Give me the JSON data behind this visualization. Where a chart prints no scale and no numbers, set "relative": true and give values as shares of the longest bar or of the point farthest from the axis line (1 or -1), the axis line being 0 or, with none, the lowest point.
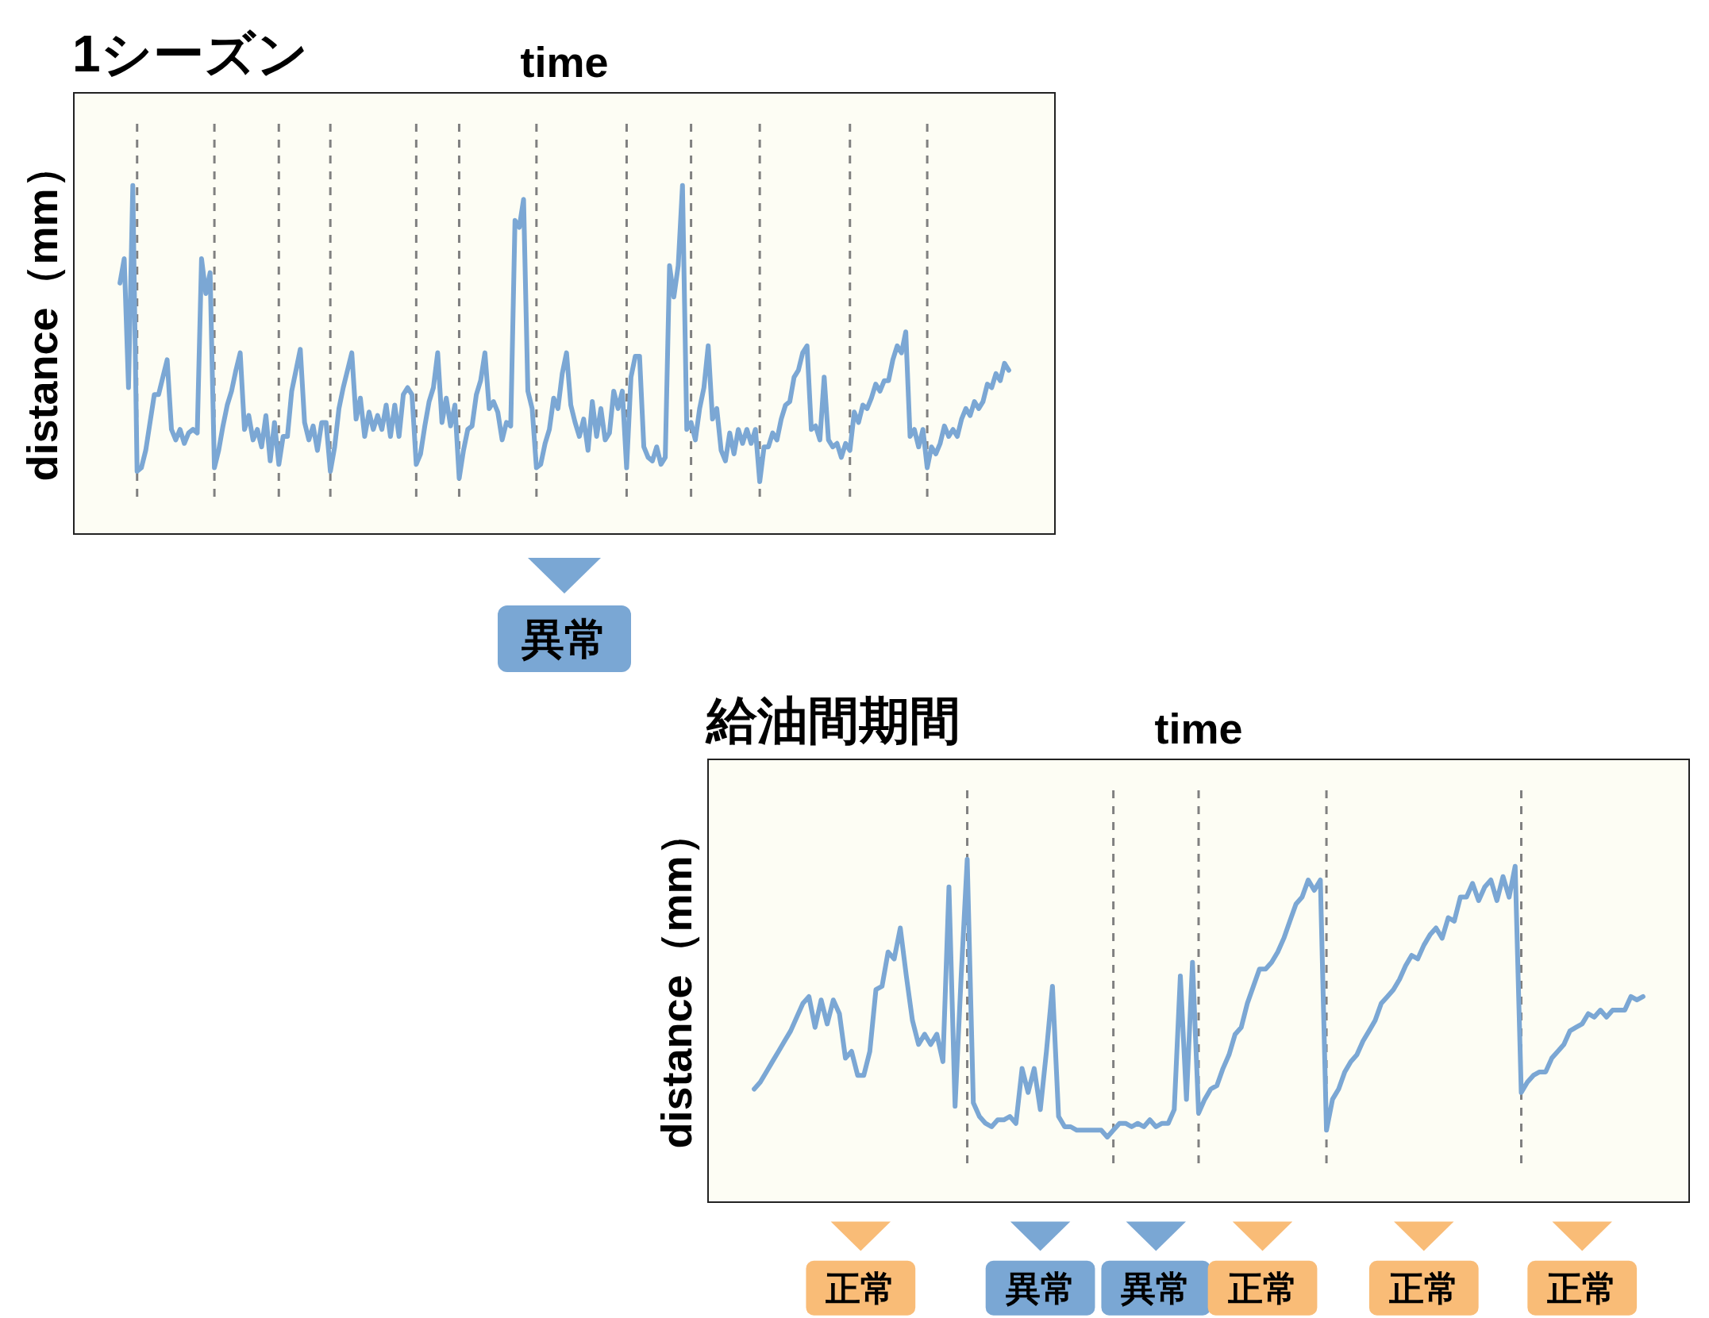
{
  "chart_data": [
    {
      "type": "line",
      "title": "1シーズン",
      "xlabel": "time",
      "ylabel": "distance（mm）",
      "relative": true,
      "categories": [
        null,
        null,
        null,
        null,
        null,
        null,
        null,
        null,
        null,
        null,
        null,
        null,
        null,
        null,
        null,
        null,
        null,
        null,
        null,
        null,
        null,
        null,
        null,
        null,
        null,
        null,
        null,
        null,
        null,
        null,
        null,
        null,
        null,
        null,
        null,
        null,
        null,
        null,
        null,
        null,
        null,
        null,
        null,
        null,
        null,
        null,
        null,
        null,
        null,
        null,
        null,
        null,
        null,
        null,
        null,
        null,
        null,
        null,
        null,
        null,
        null,
        null,
        null,
        null,
        null,
        null,
        null,
        null,
        null,
        null,
        null,
        null,
        null,
        null,
        null,
        null,
        null,
        null,
        null,
        null,
        null,
        null,
        null,
        null,
        null,
        null,
        null,
        null,
        null,
        null,
        null,
        null,
        null,
        null,
        null,
        null,
        null,
        null,
        null,
        null,
        null,
        null,
        null,
        null,
        null,
        null,
        null,
        null,
        null,
        null,
        null,
        null,
        null,
        null,
        null,
        null,
        null,
        null,
        null,
        null,
        null,
        null,
        null,
        null,
        null,
        null,
        null,
        null,
        null,
        null,
        null,
        null,
        null,
        null,
        null,
        null,
        null,
        null,
        null,
        null,
        null,
        null,
        null,
        null,
        null,
        null,
        null,
        null,
        null,
        null,
        null,
        null,
        null,
        null,
        null,
        null,
        null,
        null,
        null,
        null,
        null,
        null,
        null,
        null,
        null,
        null,
        null,
        null,
        null,
        null,
        null,
        null,
        null,
        null,
        null,
        null,
        null,
        null,
        null,
        null,
        null,
        null,
        null,
        null,
        null,
        null,
        null,
        null,
        null,
        null,
        null,
        null,
        null,
        null,
        null,
        null,
        null,
        null,
        null,
        null,
        null,
        null,
        null,
        null,
        null,
        null,
        null,
        null
      ],
      "series": [
        {
          "color": "#7ba7d4",
          "values": [
            0.72,
            0.79,
            0.42,
            1.0,
            0.18,
            0.19,
            0.24,
            0.32,
            0.4,
            0.4,
            0.45,
            0.5,
            0.3,
            0.27,
            0.3,
            0.26,
            0.29,
            0.3,
            0.29,
            0.79,
            0.69,
            0.75,
            0.19,
            0.24,
            0.31,
            0.37,
            0.41,
            0.47,
            0.52,
            0.3,
            0.34,
            0.27,
            0.3,
            0.25,
            0.34,
            0.21,
            0.32,
            0.2,
            0.28,
            0.28,
            0.41,
            0.47,
            0.53,
            0.32,
            0.27,
            0.31,
            0.24,
            0.32,
            0.32,
            0.18,
            0.25,
            0.36,
            0.42,
            0.47,
            0.52,
            0.33,
            0.39,
            0.28,
            0.35,
            0.3,
            0.34,
            0.3,
            0.37,
            0.28,
            0.37,
            0.28,
            0.4,
            0.42,
            0.4,
            0.2,
            0.23,
            0.31,
            0.38,
            0.42,
            0.52,
            0.32,
            0.39,
            0.31,
            0.37,
            0.16,
            0.24,
            0.3,
            0.31,
            0.4,
            0.44,
            0.52,
            0.36,
            0.38,
            0.35,
            0.27,
            0.32,
            0.31,
            0.9,
            0.88,
            0.96,
            0.41,
            0.36,
            0.19,
            0.2,
            0.26,
            0.3,
            0.39,
            0.36,
            0.46,
            0.52,
            0.37,
            0.32,
            0.28,
            0.33,
            0.24,
            0.38,
            0.28,
            0.36,
            0.27,
            0.29,
            0.41,
            0.36,
            0.41,
            0.19,
            0.45,
            0.51,
            0.51,
            0.25,
            0.22,
            0.21,
            0.25,
            0.2,
            0.22,
            0.77,
            0.68,
            0.77,
            1.0,
            0.3,
            0.32,
            0.27,
            0.36,
            0.42,
            0.54,
            0.33,
            0.36,
            0.24,
            0.21,
            0.29,
            0.23,
            0.3,
            0.26,
            0.3,
            0.26,
            0.3,
            0.15,
            0.25,
            0.25,
            0.29,
            0.27,
            0.33,
            0.37,
            0.38,
            0.45,
            0.47,
            0.52,
            0.54,
            0.3,
            0.31,
            0.27,
            0.45,
            0.27,
            0.25,
            0.26,
            0.22,
            0.26,
            0.24,
            0.35,
            0.32,
            0.37,
            0.36,
            0.39,
            0.43,
            0.41,
            0.44,
            0.44,
            0.5,
            0.54,
            0.52,
            0.58,
            0.28,
            0.3,
            0.25,
            0.3,
            0.19,
            0.25,
            0.23,
            0.26,
            0.31,
            0.28,
            0.3,
            0.28,
            0.33,
            0.36,
            0.34,
            0.38,
            0.36,
            0.38,
            0.43,
            0.42,
            0.46,
            0.44,
            0.49,
            0.47
          ]
        }
      ],
      "annotations": [
        "異常"
      ]
    },
    {
      "type": "line",
      "title": "給油間期間",
      "xlabel": "time",
      "ylabel": "distance（mm）",
      "relative": true,
      "categories": [
        null,
        null,
        null,
        null,
        null,
        null,
        null,
        null,
        null,
        null,
        null,
        null,
        null,
        null,
        null,
        null,
        null,
        null,
        null,
        null,
        null,
        null,
        null,
        null,
        null,
        null,
        null,
        null,
        null,
        null,
        null,
        null,
        null,
        null,
        null,
        null,
        null,
        null,
        null,
        null,
        null,
        null,
        null,
        null,
        null,
        null,
        null,
        null,
        null,
        null,
        null,
        null,
        null,
        null,
        null,
        null,
        null,
        null,
        null,
        null,
        null,
        null,
        null,
        null,
        null,
        null,
        null,
        null,
        null,
        null,
        null,
        null,
        null,
        null,
        null,
        null,
        null,
        null,
        null,
        null,
        null,
        null,
        null,
        null,
        null,
        null,
        null,
        null,
        null,
        null,
        null,
        null,
        null,
        null,
        null,
        null,
        null,
        null,
        null,
        null,
        null,
        null,
        null,
        null,
        null,
        null,
        null,
        null,
        null,
        null,
        null,
        null,
        null,
        null,
        null,
        null,
        null,
        null,
        null,
        null,
        null,
        null,
        null,
        null,
        null,
        null,
        null,
        null,
        null,
        null,
        null,
        null,
        null,
        null,
        null,
        null,
        null,
        null,
        null,
        null,
        null,
        null,
        null,
        null,
        null,
        null,
        null
      ],
      "series": [
        {
          "color": "#7ba7d4",
          "values": [
            0.33,
            0.35,
            0.38,
            0.41,
            0.44,
            0.47,
            0.5,
            0.54,
            0.58,
            0.6,
            0.51,
            0.59,
            0.52,
            0.59,
            0.55,
            0.42,
            0.44,
            0.37,
            0.37,
            0.44,
            0.62,
            0.63,
            0.73,
            0.71,
            0.8,
            0.66,
            0.53,
            0.46,
            0.49,
            0.46,
            0.49,
            0.41,
            0.92,
            0.28,
            0.66,
            1.0,
            0.29,
            0.25,
            0.23,
            0.22,
            0.24,
            0.24,
            0.25,
            0.23,
            0.39,
            0.32,
            0.39,
            0.27,
            0.44,
            0.63,
            0.25,
            0.22,
            0.22,
            0.21,
            0.21,
            0.21,
            0.21,
            0.21,
            0.19,
            0.21,
            0.23,
            0.23,
            0.22,
            0.23,
            0.22,
            0.24,
            0.22,
            0.23,
            0.23,
            0.27,
            0.66,
            0.3,
            0.7,
            0.26,
            0.3,
            0.33,
            0.34,
            0.39,
            0.43,
            0.49,
            0.51,
            0.58,
            0.63,
            0.68,
            0.68,
            0.7,
            0.73,
            0.77,
            0.82,
            0.87,
            0.89,
            0.94,
            0.91,
            0.94,
            0.21,
            0.3,
            0.33,
            0.38,
            0.41,
            0.43,
            0.47,
            0.5,
            0.53,
            0.58,
            0.6,
            0.62,
            0.65,
            0.69,
            0.72,
            0.71,
            0.75,
            0.78,
            0.8,
            0.77,
            0.83,
            0.82,
            0.89,
            0.89,
            0.93,
            0.88,
            0.92,
            0.94,
            0.88,
            0.95,
            0.89,
            0.98,
            0.32,
            0.35,
            0.37,
            0.38,
            0.38,
            0.42,
            0.44,
            0.46,
            0.5,
            0.51,
            0.52,
            0.55,
            0.54,
            0.56,
            0.54,
            0.56,
            0.56,
            0.56,
            0.6,
            0.59,
            0.6
          ]
        }
      ],
      "annotations": [
        "正常",
        "異常",
        "異常",
        "正常",
        "正常",
        "正常"
      ]
    }
  ]
}
